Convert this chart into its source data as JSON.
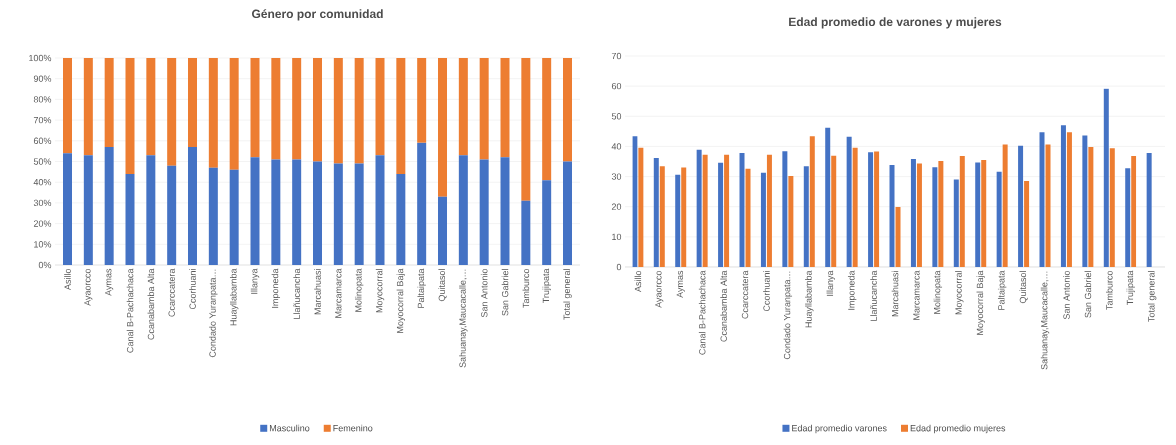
{
  "chart_data": [
    {
      "type": "bar",
      "title": "Género por comunidad",
      "stacked": true,
      "grid": "y",
      "legend": "bottom",
      "categories": [
        "Asillo",
        "Ayaorcco",
        "Aymas",
        "Canal B-Pachachaca",
        "Ccanabamba Alta",
        "Ccarccatera",
        "Ccorhuani",
        "Condado Yuranpata…",
        "Huayllabamba",
        "Illanya",
        "Imponeda",
        "Llañucancha",
        "Marcahuasi",
        "Marcamarca",
        "Molinopata",
        "Moyocorral",
        "Moyocorral Baja",
        "Paltaipata",
        "Quitasol",
        "Sahuanay,Maucacalle,…",
        "San Antonio",
        "San Gabriel",
        "Tamburco",
        "Trujipata",
        "Total general"
      ],
      "ylim": [
        0,
        100
      ],
      "yticks": [
        {
          "value": 0,
          "label": "0%"
        },
        {
          "value": 10,
          "label": "10%"
        },
        {
          "value": 20,
          "label": "20%"
        },
        {
          "value": 30,
          "label": "30%"
        },
        {
          "value": 40,
          "label": "40%"
        },
        {
          "value": 50,
          "label": "50%"
        },
        {
          "value": 60,
          "label": "60%"
        },
        {
          "value": 70,
          "label": "70%"
        },
        {
          "value": 80,
          "label": "80%"
        },
        {
          "value": 90,
          "label": "90%"
        },
        {
          "value": 100,
          "label": "100%"
        }
      ],
      "series": [
        {
          "name": "Masculino",
          "color": "#4472c4",
          "values": [
            54,
            53,
            57,
            44,
            53,
            48,
            57,
            47,
            46,
            52,
            51,
            51,
            50,
            49,
            49,
            53,
            44,
            59,
            33,
            53,
            51,
            52,
            31,
            41,
            50
          ]
        },
        {
          "name": "Femenino",
          "color": "#ed7d31",
          "values": [
            46,
            47,
            43,
            56,
            47,
            52,
            43,
            53,
            54,
            48,
            49,
            49,
            50,
            51,
            51,
            47,
            56,
            41,
            67,
            47,
            49,
            48,
            69,
            59,
            50
          ]
        }
      ]
    },
    {
      "type": "bar",
      "title": "Edad promedio de varones y mujeres",
      "grid": "y",
      "legend": "bottom",
      "categories": [
        "Asillo",
        "Ayaorcco",
        "Aymas",
        "Canal B-Pachachaca",
        "Ccanabamba Alta",
        "Ccarccatera",
        "Ccorhuani",
        "Condado Yuranpata…",
        "Huayllabamba",
        "Illanya",
        "Imponeda",
        "Llañucancha",
        "Marcahuasi",
        "Marcamarca",
        "Molinopata",
        "Moyocorral",
        "Moyocorral Baja",
        "Paltaipata",
        "Quitasol",
        "Sahuanay,Maucacalle,…",
        "San Antonio",
        "San Gabriel",
        "Tamburco",
        "Trujipata",
        "Total general"
      ],
      "ylim": [
        0,
        70
      ],
      "yticks": [
        0,
        10,
        20,
        30,
        40,
        50,
        60,
        70
      ],
      "series": [
        {
          "name": "Edad promedio varones",
          "color": "#4472c4",
          "values": [
            43.4,
            36.2,
            30.6,
            38.9,
            34.6,
            37.8,
            31.3,
            38.4,
            33.4,
            46.2,
            43.2,
            38.1,
            33.8,
            35.8,
            33.1,
            29.0,
            34.7,
            31.6,
            40.2,
            44.7,
            47.0,
            43.6,
            59.1,
            32.8,
            37.8
          ]
        },
        {
          "name": "Edad promedio mujeres",
          "color": "#ed7d31",
          "values": [
            39.6,
            33.4,
            33.0,
            37.2,
            37.2,
            32.6,
            37.2,
            30.2,
            43.4,
            36.9,
            39.6,
            38.3,
            19.9,
            34.3,
            35.2,
            36.8,
            35.5,
            40.6,
            28.5,
            40.6,
            44.7,
            39.8,
            39.4,
            36.8,
            null
          ]
        }
      ]
    }
  ]
}
